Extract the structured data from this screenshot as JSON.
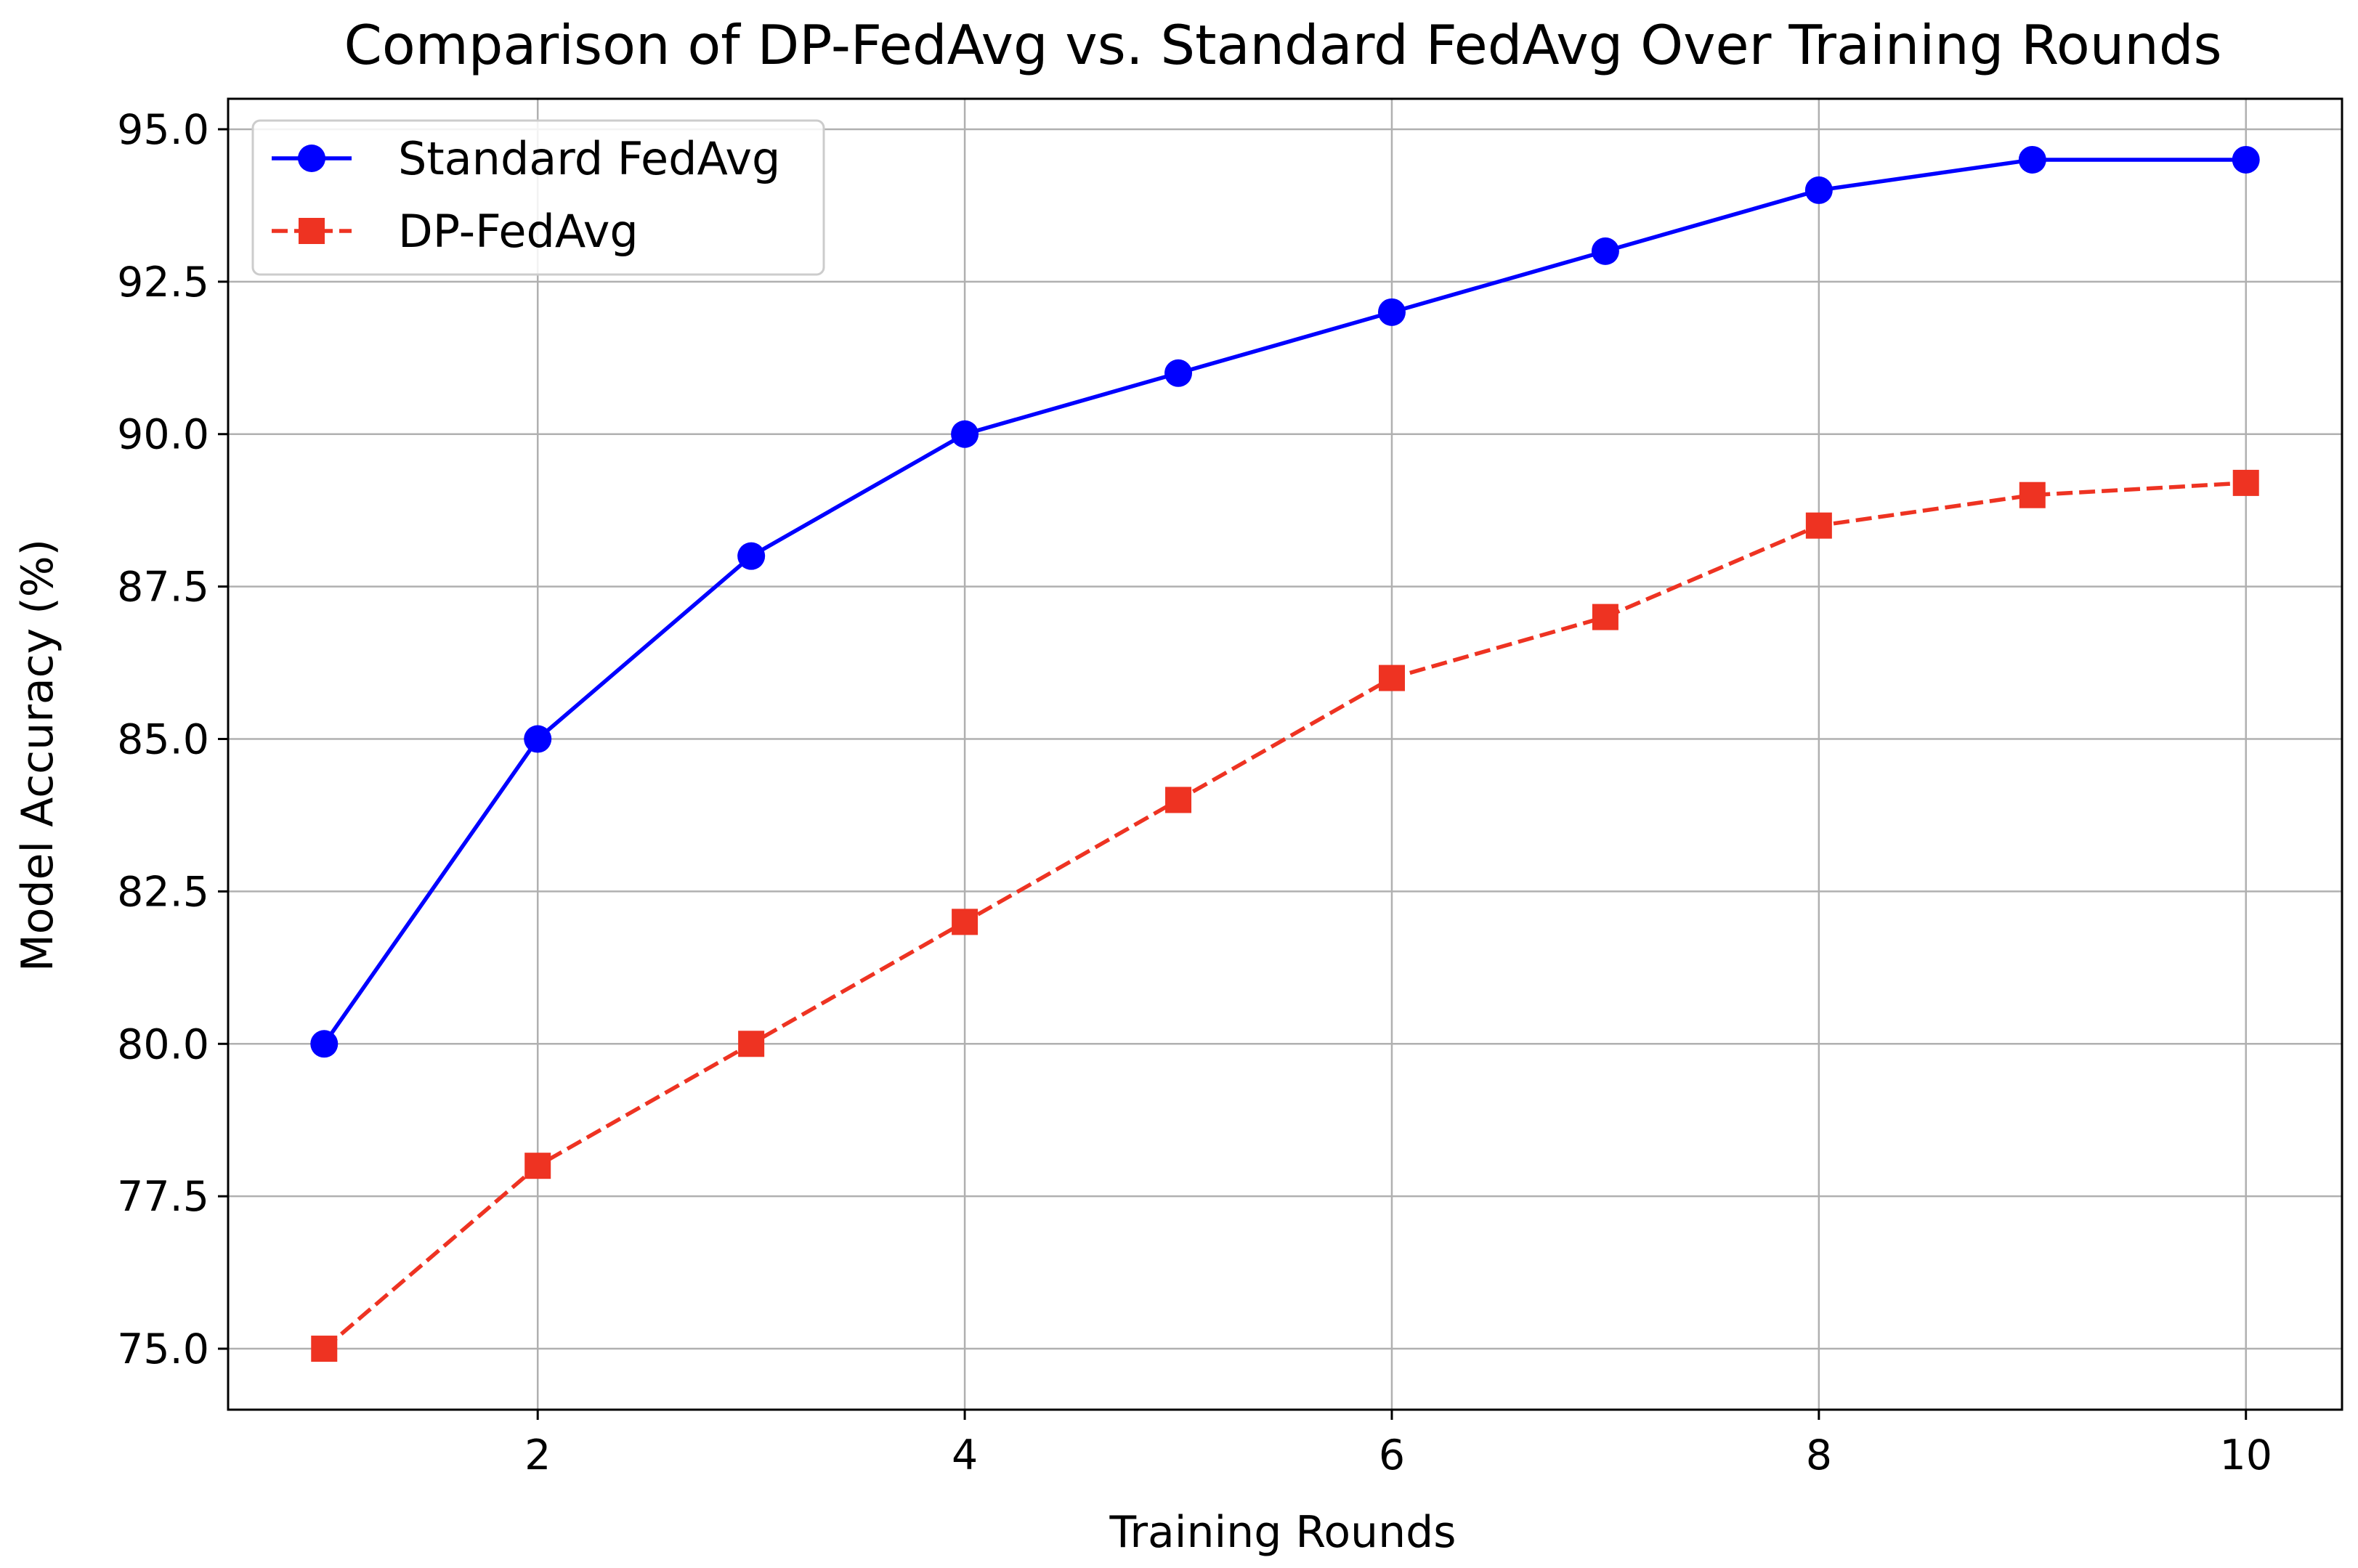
{
  "chart_data": {
    "type": "line",
    "title": "Comparison of DP-FedAvg vs. Standard FedAvg Over Training Rounds",
    "xlabel": "Training Rounds",
    "ylabel": "Model Accuracy (%)",
    "xlim": [
      0.55,
      10.45
    ],
    "ylim": [
      74.0,
      95.5
    ],
    "x_ticks": [
      2,
      4,
      6,
      8,
      10
    ],
    "x_tick_labels": [
      "2",
      "4",
      "6",
      "8",
      "10"
    ],
    "y_ticks": [
      75.0,
      77.5,
      80.0,
      82.5,
      85.0,
      87.5,
      90.0,
      92.5,
      95.0
    ],
    "y_tick_labels": [
      "75.0",
      "77.5",
      "80.0",
      "82.5",
      "85.0",
      "87.5",
      "90.0",
      "92.5",
      "95.0"
    ],
    "grid": true,
    "legend_position": "top-left",
    "x": [
      1,
      2,
      3,
      4,
      5,
      6,
      7,
      8,
      9,
      10
    ],
    "series": [
      {
        "name": "Standard FedAvg",
        "values": [
          80.0,
          85.0,
          88.0,
          90.0,
          91.0,
          92.0,
          93.0,
          94.0,
          94.5,
          94.5
        ],
        "color": "#0000ff",
        "line_style": "solid",
        "marker": "circle"
      },
      {
        "name": "DP-FedAvg",
        "values": [
          75.0,
          78.0,
          80.0,
          82.0,
          84.0,
          86.0,
          87.0,
          88.5,
          89.0,
          89.2
        ],
        "color": "#ee3322",
        "line_style": "dashed",
        "marker": "square"
      }
    ]
  }
}
